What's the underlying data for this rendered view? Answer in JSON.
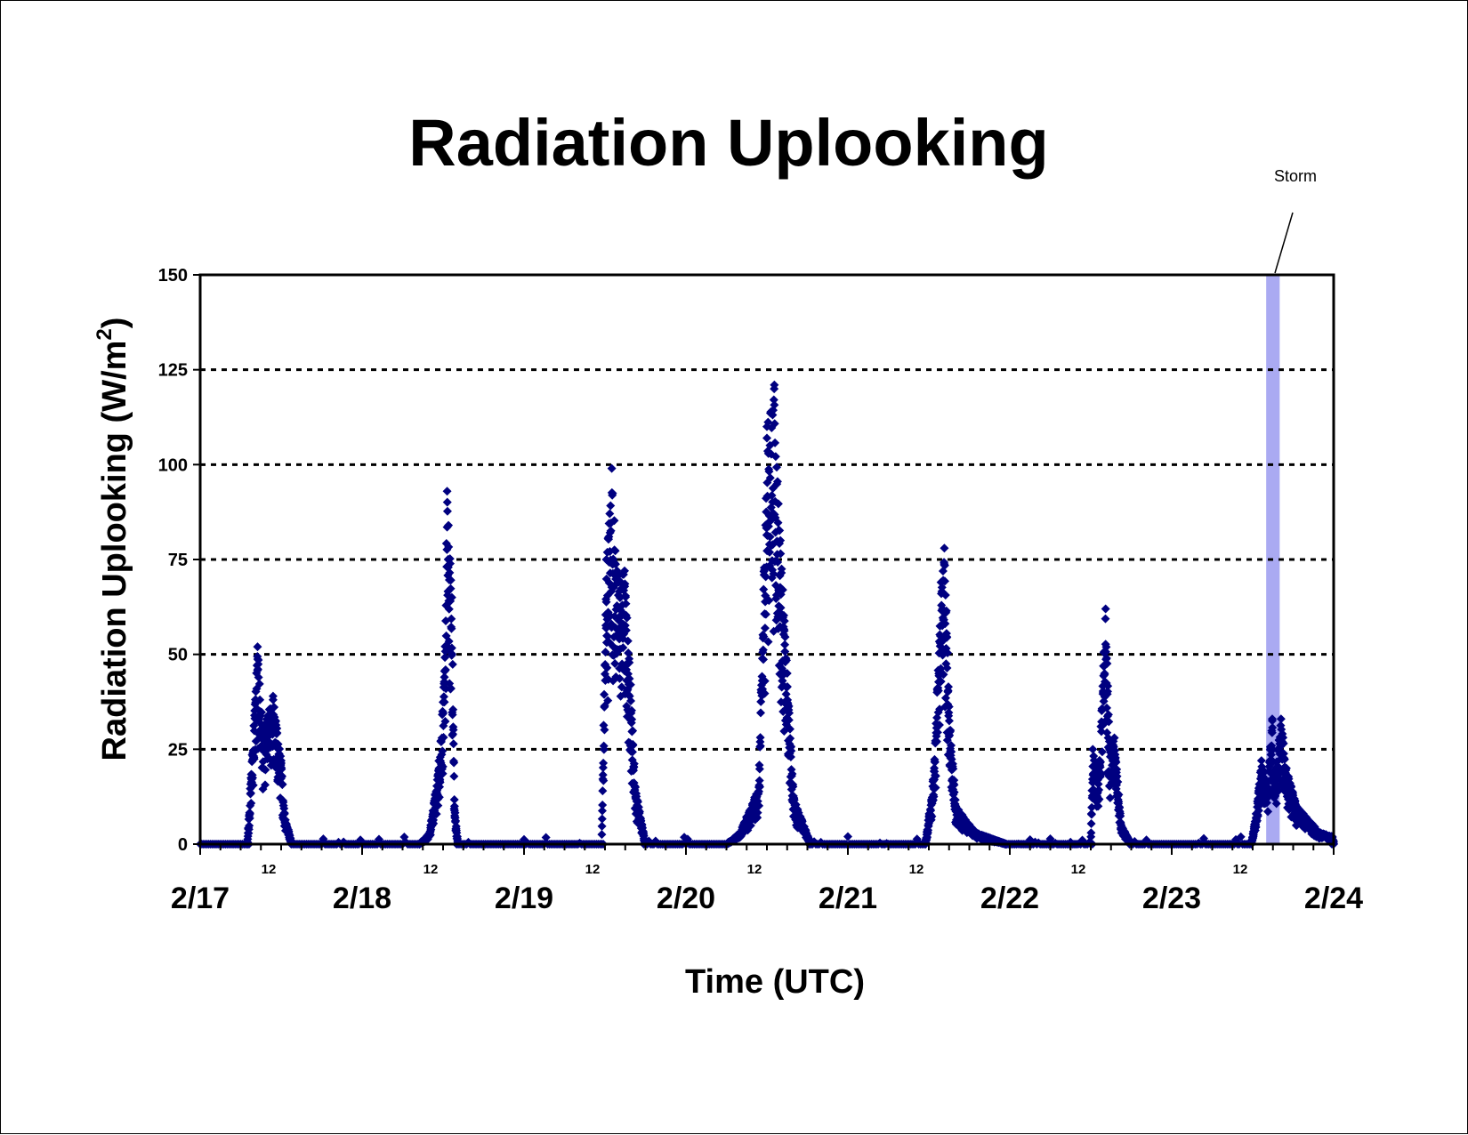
{
  "chart_data": {
    "type": "scatter",
    "title": "Radiation Uplooking",
    "xlabel": "Time (UTC)",
    "ylabel": "Radiation Uplooking (W/m",
    "ylabel_superscript": "2",
    "ylabel_close": ")",
    "ylim": [
      0,
      150
    ],
    "yticks": [
      "0",
      "25",
      "50",
      "75",
      "100",
      "125",
      "150"
    ],
    "xlim": [
      "2/17 00:00",
      "2/24 00:00"
    ],
    "day_labels": [
      "2/17",
      "2/18",
      "2/19",
      "2/20",
      "2/21",
      "2/22",
      "2/23",
      "2/24"
    ],
    "hour_label": "12",
    "grid": "horizontal dotted",
    "marker": "diamond",
    "series_color": "#000080",
    "annotation": {
      "text": "Storm",
      "start": "2/23 14:00",
      "end": "2/23 16:00",
      "color": "#aaaaf2"
    },
    "peaks": [
      {
        "day": "2/17",
        "start_hour": 7.0,
        "end_hour": 13.6,
        "points": [
          [
            8.5,
            52
          ],
          [
            9.3,
            30
          ],
          [
            10.8,
            39
          ],
          [
            12.0,
            22
          ],
          [
            12.5,
            8
          ]
        ]
      },
      {
        "day": "2/18",
        "start_hour": 8.5,
        "end_hour": 14.2,
        "points": [
          [
            10.0,
            3
          ],
          [
            11.2,
            18
          ],
          [
            12.2,
            44
          ],
          [
            12.6,
            93
          ],
          [
            13.3,
            65
          ],
          [
            13.7,
            10
          ]
        ]
      },
      {
        "day": "2/19",
        "start_hour": 11.5,
        "end_hour": 18.0,
        "points": [
          [
            12.2,
            75
          ],
          [
            13.0,
            99
          ],
          [
            13.8,
            72
          ],
          [
            14.9,
            72
          ],
          [
            15.8,
            42
          ],
          [
            16.5,
            15
          ]
        ]
      },
      {
        "day": "2/20",
        "start_hour": 6.0,
        "end_hour": 18.5,
        "points": [
          [
            8.0,
            3
          ],
          [
            10.8,
            15
          ],
          [
            12.0,
            110
          ],
          [
            13.1,
            121
          ],
          [
            14.0,
            80
          ],
          [
            15.0,
            45
          ],
          [
            16.0,
            12
          ]
        ]
      },
      {
        "day": "2/21",
        "start_hour": 11.5,
        "end_hour": 23.5,
        "points": [
          [
            12.8,
            20
          ],
          [
            13.8,
            69
          ],
          [
            14.3,
            78
          ],
          [
            15.2,
            30
          ],
          [
            16.0,
            10
          ],
          [
            19.0,
            3
          ]
        ]
      },
      {
        "day": "2/22",
        "start_hour": 12.0,
        "end_hour": 18.0,
        "points": [
          [
            12.3,
            25
          ],
          [
            13.2,
            18
          ],
          [
            14.2,
            62
          ],
          [
            14.8,
            25
          ],
          [
            15.5,
            28
          ],
          [
            16.5,
            5
          ]
        ]
      },
      {
        "day": "2/23",
        "start_hour": 11.8,
        "end_hour": 24.0,
        "points": [
          [
            12.5,
            8
          ],
          [
            13.3,
            22
          ],
          [
            14.2,
            15
          ],
          [
            14.9,
            33
          ],
          [
            15.2,
            16
          ],
          [
            16.2,
            33
          ],
          [
            17.0,
            20
          ],
          [
            18.5,
            10
          ],
          [
            22.0,
            3
          ],
          [
            23.8,
            2
          ]
        ]
      }
    ]
  }
}
